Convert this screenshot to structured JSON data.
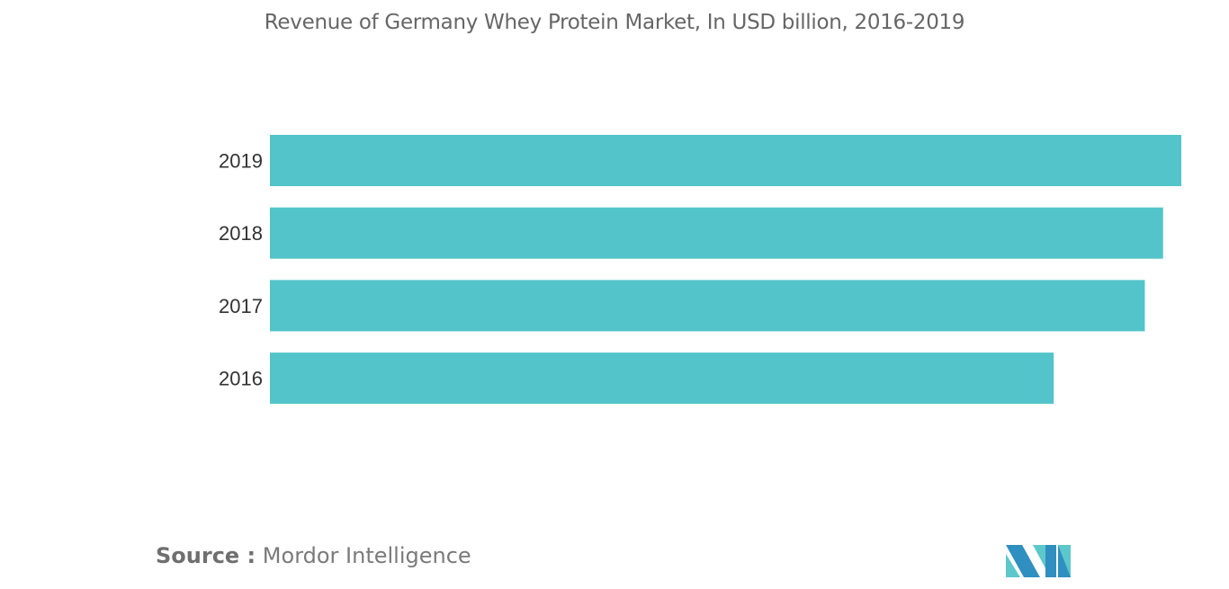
{
  "chart_data": {
    "type": "bar",
    "orientation": "horizontal",
    "title": "Revenue of Germany Whey Protein Market, In USD billion, 2016-2019",
    "categories": [
      "2019",
      "2018",
      "2017",
      "2016"
    ],
    "values": [
      1.0,
      0.98,
      0.96,
      0.86
    ],
    "xlim": [
      0,
      1.0
    ],
    "grid": false,
    "bar_color": "#52c4ca"
  },
  "source": {
    "label": "Source :",
    "text": "Mordor Intelligence"
  },
  "logo": {
    "icon": "mordor-intelligence-logo-icon",
    "colors": [
      "#2f8fc0",
      "#5cc8cc"
    ]
  }
}
